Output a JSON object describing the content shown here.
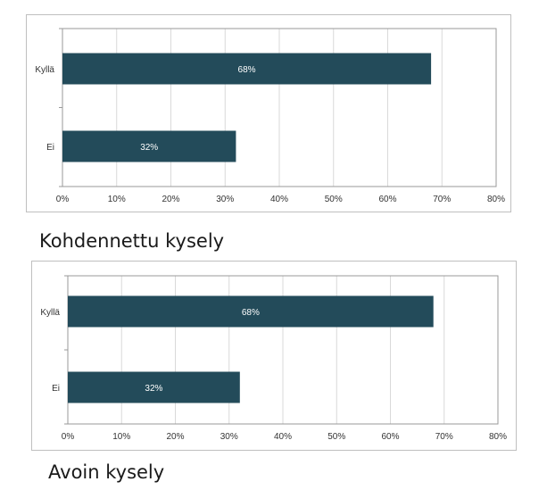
{
  "colors": {
    "bar": "#234b5a",
    "grid": "#d9d9d9",
    "axis": "#999999",
    "border": "#bfbfbf"
  },
  "chart_data": [
    {
      "type": "bar",
      "orientation": "horizontal",
      "categories": [
        "Kyllä",
        "Ei"
      ],
      "values": [
        68,
        32
      ],
      "data_labels": [
        "68%",
        "32%"
      ],
      "xlim": [
        0,
        80
      ],
      "xticks": [
        "0%",
        "10%",
        "20%",
        "30%",
        "40%",
        "50%",
        "60%",
        "70%",
        "80%"
      ],
      "grid": true,
      "title": "",
      "caption": "Kohdennettu kysely"
    },
    {
      "type": "bar",
      "orientation": "horizontal",
      "categories": [
        "Kyllä",
        "Ei"
      ],
      "values": [
        68,
        32
      ],
      "data_labels": [
        "68%",
        "32%"
      ],
      "xlim": [
        0,
        80
      ],
      "xticks": [
        "0%",
        "10%",
        "20%",
        "30%",
        "40%",
        "50%",
        "60%",
        "70%",
        "80%"
      ],
      "grid": true,
      "title": "",
      "caption": "Avoin kysely"
    }
  ]
}
